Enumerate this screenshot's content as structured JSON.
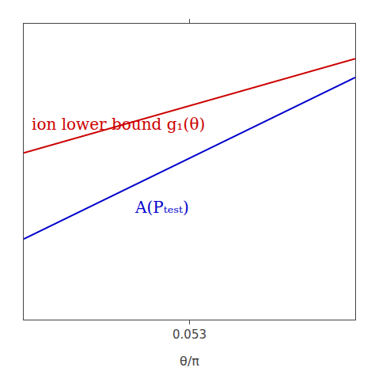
{
  "chart_data": {
    "type": "line",
    "xlabel": "θ/π",
    "x": [
      0.0,
      0.106
    ],
    "series": [
      {
        "name": "ion lower bound g₁(θ)",
        "color": "#cc0000",
        "values": [
          0.62,
          0.97
        ]
      },
      {
        "name": "A(Pₜₑₛₜ)",
        "color": "#0000cc",
        "values": [
          0.3,
          0.9
        ]
      }
    ],
    "xlim": [
      0.0,
      0.106
    ],
    "xticks": [
      0.053
    ],
    "ylim": [
      0.0,
      1.1
    ],
    "yticks": [],
    "tick_labels": "x",
    "grid": false
  }
}
